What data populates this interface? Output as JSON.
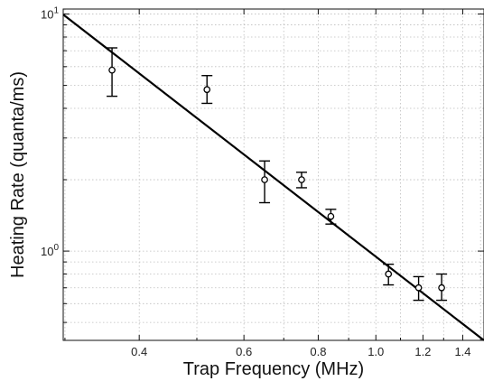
{
  "chart_data": {
    "type": "scatter",
    "xlabel": "Trap Frequency (MHz)",
    "ylabel": "Heating Rate (quanta/ms)",
    "x_scale": "log",
    "y_scale": "log",
    "xlim": [
      0.298,
      1.52
    ],
    "ylim": [
      0.42,
      10.5
    ],
    "grid": true,
    "x_ticks": [
      {
        "value": 0.4,
        "label": "0.4"
      },
      {
        "value": 0.6,
        "label": "0.6"
      },
      {
        "value": 0.8,
        "label": "0.8"
      },
      {
        "value": 1.0,
        "label": "1.0"
      },
      {
        "value": 1.2,
        "label": "1.2"
      },
      {
        "value": 1.4,
        "label": "1.4"
      }
    ],
    "x_minor_ticks": [
      0.3,
      0.5,
      0.7,
      0.9,
      1.1,
      1.3,
      1.5
    ],
    "y_ticks": [
      {
        "value": 1,
        "base": "10",
        "exp": "0"
      },
      {
        "value": 10,
        "base": "10",
        "exp": "1"
      }
    ],
    "y_minor_ticks": [
      0.5,
      0.6,
      0.7,
      0.8,
      0.9,
      2,
      3,
      4,
      5,
      6,
      7,
      8,
      9
    ],
    "series": [
      {
        "x": [
          0.36,
          0.52,
          0.65,
          0.75,
          0.84,
          1.05,
          1.18,
          1.29
        ],
        "y": [
          5.8,
          4.8,
          2.0,
          2.0,
          1.4,
          0.8,
          0.7,
          0.7
        ],
        "err_low": [
          4.5,
          4.2,
          1.6,
          1.85,
          1.3,
          0.72,
          0.62,
          0.62
        ],
        "err_high": [
          7.2,
          5.5,
          2.4,
          2.15,
          1.5,
          0.88,
          0.78,
          0.8
        ]
      }
    ],
    "fit_line": {
      "x": [
        0.298,
        1.52
      ],
      "y": [
        9.95,
        0.42
      ]
    }
  }
}
